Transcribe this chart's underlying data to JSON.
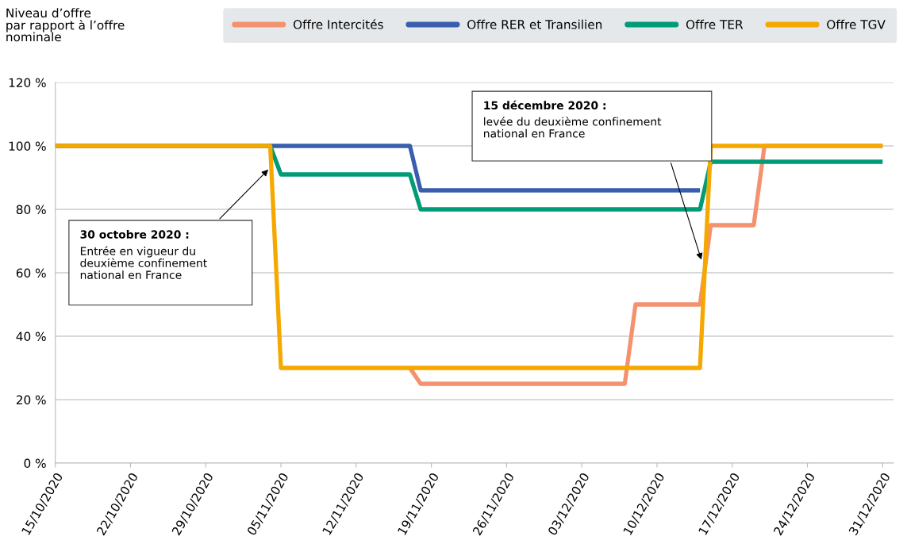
{
  "chart_data": {
    "type": "line",
    "ylabel": "Niveau d’offre\npar rapport à l’offre\nnominale",
    "series": [
      {
        "name": "Offre Intercités",
        "color": "#f4916e",
        "x": [
          "2020-11-17",
          "2020-11-18",
          "2020-12-07",
          "2020-12-08",
          "2020-12-14",
          "2020-12-15",
          "2020-12-19",
          "2020-12-20",
          "2020-12-31"
        ],
        "values": [
          30,
          25,
          25,
          50,
          50,
          75,
          75,
          100,
          100
        ]
      },
      {
        "name": "Offre RER et Transilien",
        "color": "#3a5dae",
        "x": [
          "2020-10-15",
          "2020-11-04",
          "2020-11-17",
          "2020-11-18",
          "2020-12-14"
        ],
        "values": [
          100,
          100,
          100,
          86,
          86
        ]
      },
      {
        "name": "Offre TER",
        "color": "#009b77",
        "x": [
          "2020-10-15",
          "2020-11-04",
          "2020-11-05",
          "2020-11-17",
          "2020-11-18",
          "2020-12-14",
          "2020-12-15",
          "2020-12-31"
        ],
        "values": [
          100,
          100,
          91,
          91,
          80,
          80,
          95,
          95
        ]
      },
      {
        "name": "Offre TGV",
        "color": "#f5a800",
        "x": [
          "2020-10-15",
          "2020-11-04",
          "2020-11-05",
          "2020-12-14",
          "2020-12-15",
          "2020-12-31"
        ],
        "values": [
          100,
          100,
          30,
          30,
          100,
          100
        ]
      }
    ],
    "xlim": [
      "2020-10-15",
      "2021-01-01"
    ],
    "xticks": [
      {
        "value": "2020-10-15",
        "label": "15/10/2020"
      },
      {
        "value": "2020-10-22",
        "label": "22/10/2020"
      },
      {
        "value": "2020-10-29",
        "label": "29/10/2020"
      },
      {
        "value": "2020-11-05",
        "label": "05/11/2020"
      },
      {
        "value": "2020-11-12",
        "label": "12/11/2020"
      },
      {
        "value": "2020-11-19",
        "label": "19/11/2020"
      },
      {
        "value": "2020-11-26",
        "label": "26/11/2020"
      },
      {
        "value": "2020-12-03",
        "label": "03/12/2020"
      },
      {
        "value": "2020-12-10",
        "label": "10/12/2020"
      },
      {
        "value": "2020-12-17",
        "label": "17/12/2020"
      },
      {
        "value": "2020-12-24",
        "label": "24/12/2020"
      },
      {
        "value": "2020-12-31",
        "label": "31/12/2020"
      }
    ],
    "ylim": [
      0,
      120
    ],
    "yticks": [
      {
        "value": 0,
        "label": "0 %"
      },
      {
        "value": 20,
        "label": "20 %"
      },
      {
        "value": 40,
        "label": "40 %"
      },
      {
        "value": 60,
        "label": "60 %"
      },
      {
        "value": 80,
        "label": "80 %"
      },
      {
        "value": 100,
        "label": "100 %"
      },
      {
        "value": 120,
        "label": "120 %"
      }
    ],
    "annotations": [
      "30 octobre 2020 :\nEntrée en vigueur du\ndeuxième confinement\nnational en France",
      "15 décembre 2020 :\nlevée du deuxième confinement\nnational en France"
    ],
    "grid": "y",
    "legend": "top",
    "line_style": "solid",
    "marker": "none"
  }
}
